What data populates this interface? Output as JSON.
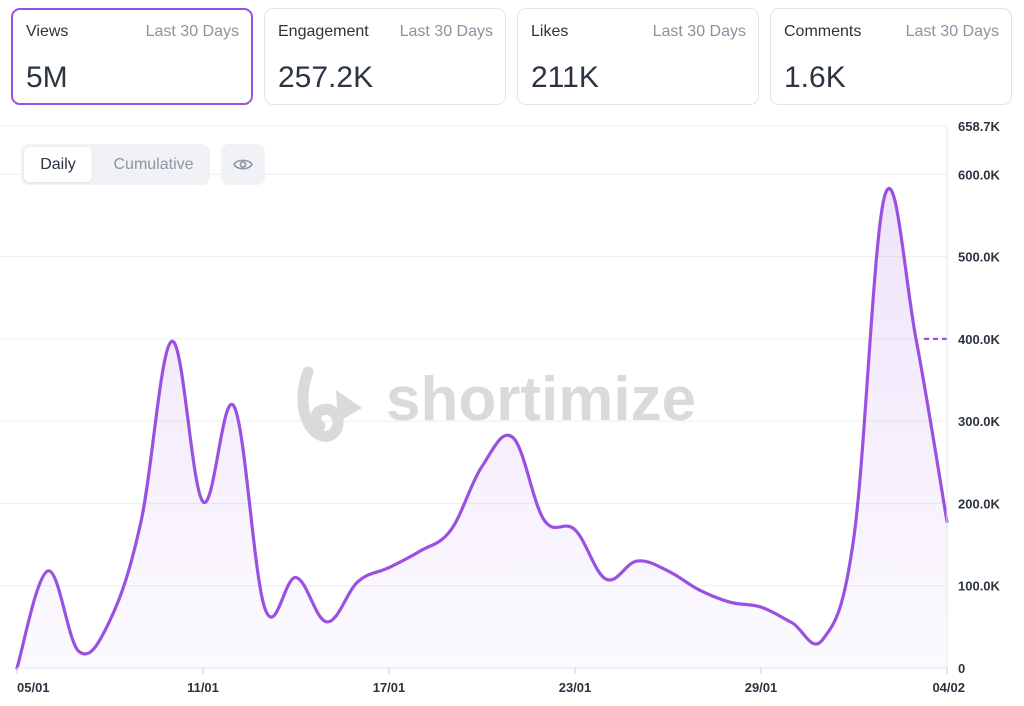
{
  "cards": [
    {
      "label": "Views",
      "period": "Last 30 Days",
      "value": "5M"
    },
    {
      "label": "Engagement",
      "period": "Last 30 Days",
      "value": "257.2K"
    },
    {
      "label": "Likes",
      "period": "Last 30 Days",
      "value": "211K"
    },
    {
      "label": "Comments",
      "period": "Last 30 Days",
      "value": "1.6K"
    }
  ],
  "toggle": {
    "daily": "Daily",
    "cumulative": "Cumulative"
  },
  "watermark": "shortimize",
  "colors": {
    "accent": "#9b51e0",
    "fill": "#f5eefc",
    "grid": "#eceef1"
  },
  "chart_data": {
    "type": "area",
    "ylim": [
      0,
      658700
    ],
    "y_ticks": [
      "0",
      "100.0K",
      "200.0K",
      "300.0K",
      "400.0K",
      "500.0K",
      "600.0K",
      "658.7K"
    ],
    "x_ticks": [
      "05/01",
      "11/01",
      "17/01",
      "23/01",
      "29/01",
      "04/02"
    ],
    "dashed_reference": {
      "value": 400000
    },
    "series": [
      {
        "x": [
          "05/01",
          "06/01",
          "07/01",
          "08/01",
          "09/01",
          "10/01",
          "11/01",
          "12/01",
          "13/01",
          "14/01",
          "15/01",
          "16/01",
          "17/01",
          "18/01",
          "19/01",
          "20/01",
          "21/01",
          "22/01",
          "23/01",
          "24/01",
          "25/01",
          "26/01",
          "27/01",
          "28/01",
          "29/01",
          "30/01",
          "31/01",
          "01/02",
          "02/02",
          "03/02",
          "04/02"
        ],
        "values": [
          0,
          118000,
          20000,
          58000,
          178000,
          397000,
          202000,
          318000,
          72000,
          110000,
          56000,
          105000,
          122000,
          142000,
          168000,
          245000,
          280000,
          180000,
          168000,
          108000,
          130000,
          118000,
          95000,
          80000,
          74000,
          55000,
          35000,
          160000,
          575000,
          400000,
          178000
        ]
      }
    ]
  }
}
